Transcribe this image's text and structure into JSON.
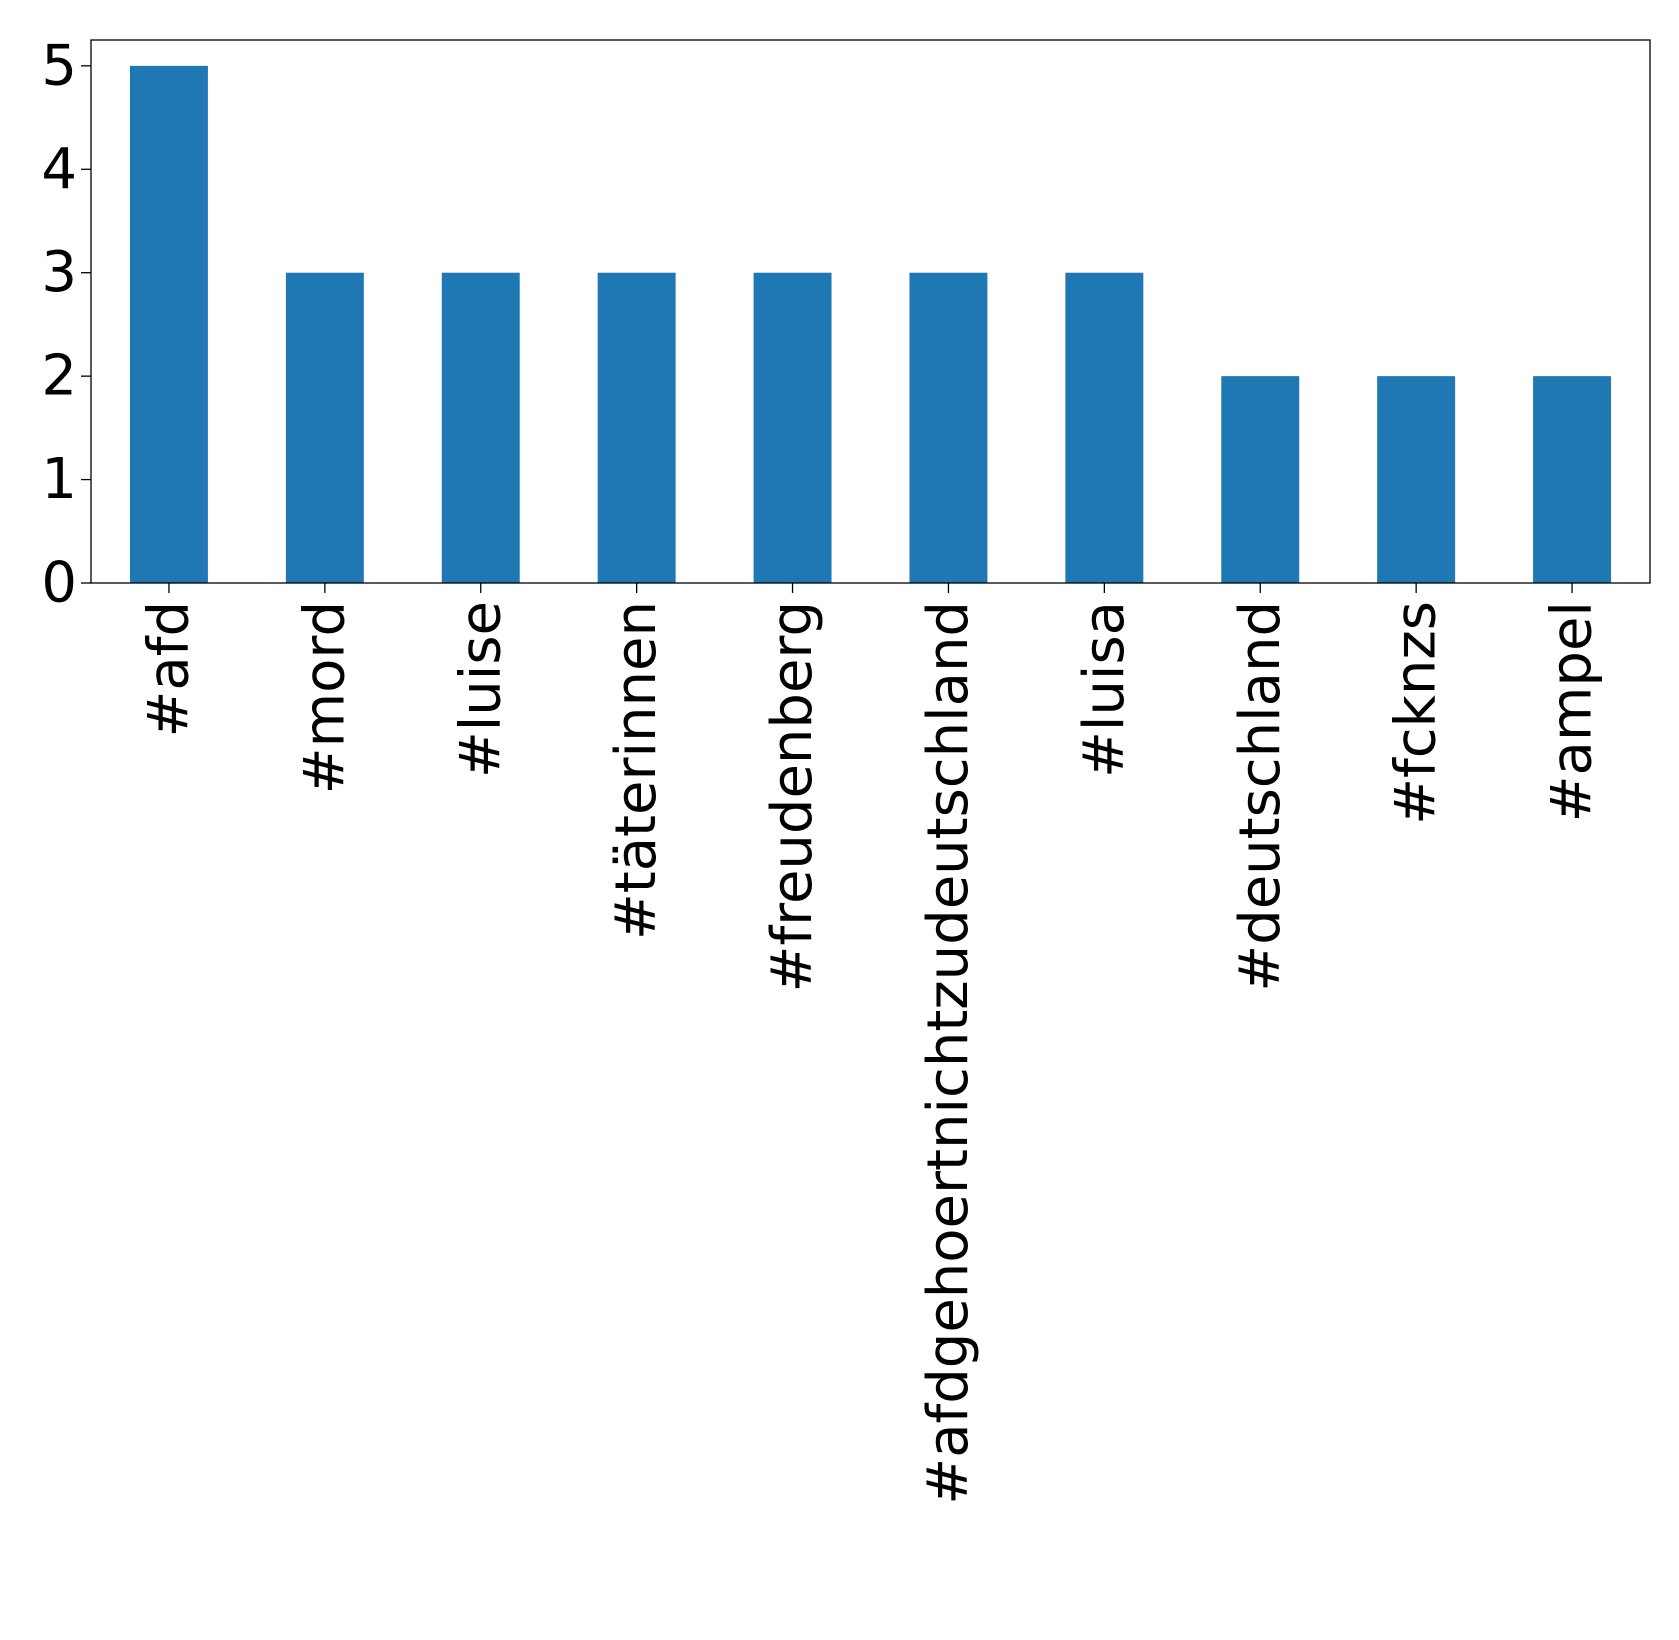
{
  "chart_data": {
    "type": "bar",
    "title": "",
    "xlabel": "",
    "ylabel": "",
    "categories": [
      "#afd",
      "#mord",
      "#luise",
      "#täterinnen",
      "#freudenberg",
      "#afdgehoertnichtzudeutschland",
      "#luisa",
      "#deutschland",
      "#fcknzs",
      "#ampel"
    ],
    "values": [
      5,
      3,
      3,
      3,
      3,
      3,
      3,
      2,
      2,
      2
    ],
    "ylim": [
      0,
      5.25
    ],
    "yticks": [
      0,
      1,
      2,
      3,
      4,
      5
    ],
    "grid": false,
    "legend": "none",
    "bar_color": "#1f77b4"
  }
}
